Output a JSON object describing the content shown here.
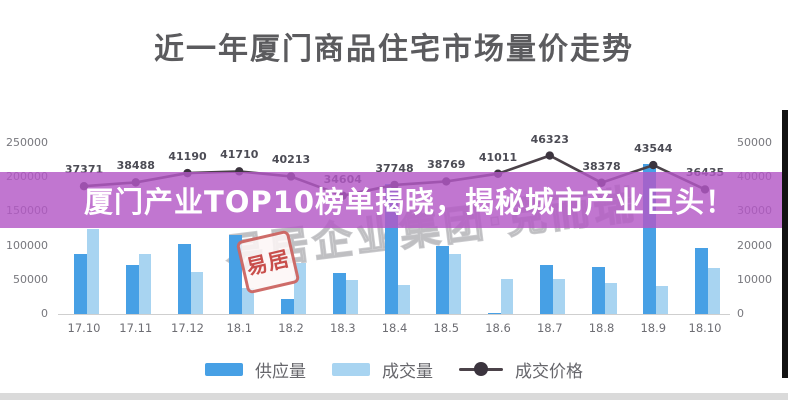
{
  "page": {
    "title": "近一年厦门商品住宅市场量价走势"
  },
  "overlay": {
    "headline": "厦门产业TOP10榜单揭晓，揭秘城市产业巨头！",
    "band_color": "#b358c6"
  },
  "watermark": {
    "text": "易居企业集团·克而瑞",
    "stamp_text": "易居"
  },
  "legend": [
    {
      "label": "供应量",
      "type": "bar",
      "color": "#47a0e5"
    },
    {
      "label": "成交量",
      "type": "bar",
      "color": "#a8d4f1"
    },
    {
      "label": "成交价格",
      "type": "line",
      "color": "#4b4249"
    }
  ],
  "chart_data": {
    "type": "bar",
    "subtype": "combo bar+line, dual axis",
    "title": "近一年厦门商品住宅市场量价走势",
    "categories": [
      "17.10",
      "17.11",
      "17.12",
      "18.1",
      "18.2",
      "18.3",
      "18.4",
      "18.5",
      "18.6",
      "18.7",
      "18.8",
      "18.9",
      "18.10"
    ],
    "series": [
      {
        "name": "供应量",
        "type": "bar",
        "axis": "left",
        "color": "#47a0e5",
        "values": [
          88000,
          72000,
          103000,
          115000,
          22000,
          60000,
          190000,
          99000,
          2000,
          71000,
          68000,
          219000,
          97000
        ]
      },
      {
        "name": "成交量",
        "type": "bar",
        "axis": "left",
        "color": "#a8d4f1",
        "values": [
          124000,
          88000,
          62000,
          38000,
          75000,
          50000,
          43000,
          88000,
          51000,
          51000,
          46000,
          41000,
          67000
        ]
      },
      {
        "name": "成交价格",
        "type": "line",
        "axis": "right",
        "color": "#4b4249",
        "marker": "circle",
        "data_labels": true,
        "values": [
          37371,
          38488,
          41190,
          41710,
          40213,
          34604,
          37748,
          38769,
          41011,
          46323,
          38378,
          43544,
          36435
        ]
      }
    ],
    "left_axis": {
      "min": 0,
      "max": 250000,
      "ticks": [
        0,
        50000,
        100000,
        150000,
        200000,
        250000
      ]
    },
    "right_axis": {
      "min": 0,
      "max": 50000,
      "ticks": [
        0,
        10000,
        20000,
        30000,
        40000,
        50000
      ]
    },
    "grid": false,
    "legend_position": "bottom"
  }
}
